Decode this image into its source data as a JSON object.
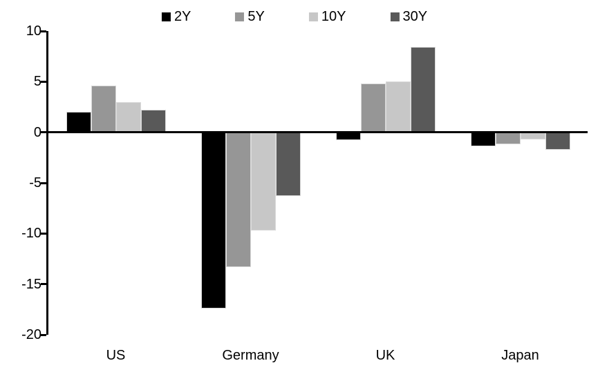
{
  "chart_data": {
    "type": "bar",
    "title": "",
    "categories": [
      "US",
      "Germany",
      "UK",
      "Japan"
    ],
    "series": [
      {
        "name": "2Y",
        "color": "#000000",
        "values": [
          2.0,
          -17.4,
          -0.8,
          -1.4
        ]
      },
      {
        "name": "5Y",
        "color": "#969696",
        "values": [
          4.6,
          -13.3,
          4.8,
          -1.2
        ]
      },
      {
        "name": "10Y",
        "color": "#c7c7c7",
        "values": [
          3.0,
          -9.7,
          5.0,
          -0.7
        ]
      },
      {
        "name": "30Y",
        "color": "#595959",
        "values": [
          2.2,
          -6.3,
          8.4,
          -1.7
        ]
      }
    ],
    "ylim": [
      -20,
      10
    ],
    "yticks": [
      10,
      5,
      0,
      -5,
      -10,
      -15,
      -20
    ],
    "grid": false,
    "legend_position": "top-center",
    "axis_color": "#000000",
    "bar_border_color": "#d9d9d9"
  }
}
